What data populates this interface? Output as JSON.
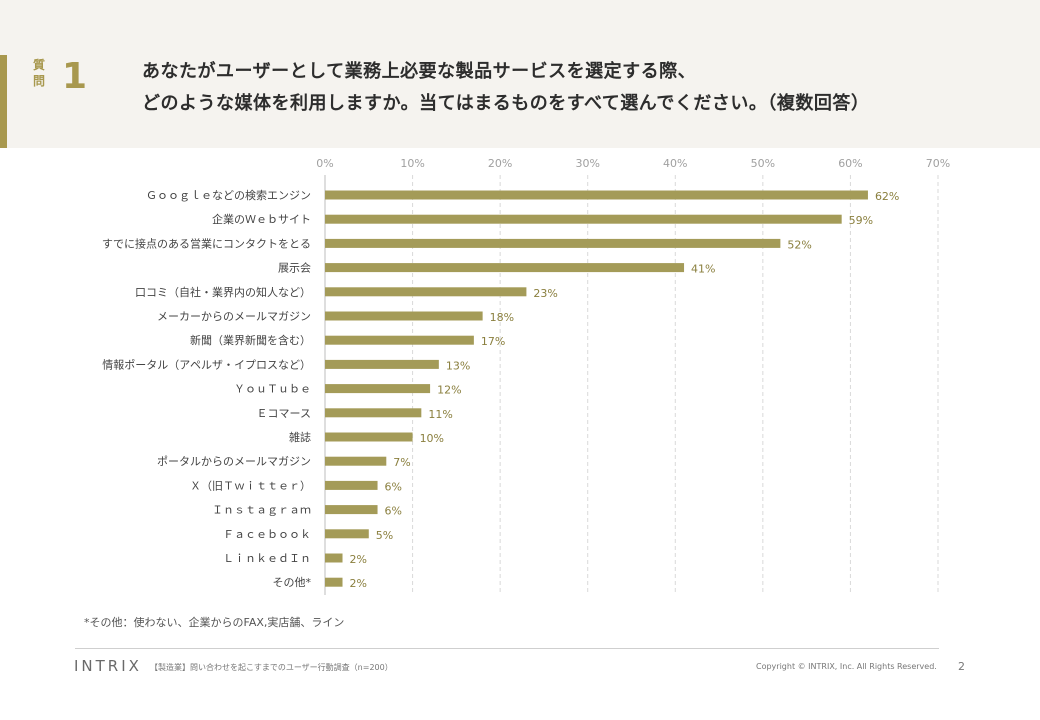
{
  "question": {
    "label": "質問",
    "number": "1",
    "line1": "あなたがユーザーとして業務上必要な製品サービスを選定する際、",
    "line2": "どのような媒体を利用しますか。当てはまるものをすべて選んでください。（複数回答）"
  },
  "colors": {
    "accent": "#a8984e",
    "bar": "#a49b58",
    "label_value": "#8a7f3e"
  },
  "chart_data": {
    "type": "bar",
    "orientation": "horizontal",
    "categories": [
      "Ｇｏｏｇｌｅなどの検索エンジン",
      "企業のＷｅｂサイト",
      "すでに接点のある営業にコンタクトをとる",
      "展示会",
      "口コミ（自社・業界内の知人など）",
      "メーカーからのメールマガジン",
      "新聞（業界新聞を含む）",
      "情報ポータル（アペルザ・イプロスなど）",
      "ＹｏｕＴｕｂｅ",
      "Ｅコマース",
      "雑誌",
      "ポータルからのメールマガジン",
      "Ｘ（旧Ｔｗｉｔｔｅｒ）",
      "Ｉｎｓｔａｇｒａｍ",
      "Ｆａｃｅｂｏｏｋ",
      "ＬｉｎｋｅｄＩｎ",
      "その他*"
    ],
    "values": [
      62,
      59,
      52,
      41,
      23,
      18,
      17,
      13,
      12,
      11,
      10,
      7,
      6,
      6,
      5,
      2,
      2
    ],
    "value_labels": [
      "62%",
      "59%",
      "52%",
      "41%",
      "23%",
      "18%",
      "17%",
      "13%",
      "12%",
      "11%",
      "10%",
      "7%",
      "6%",
      "6%",
      "5%",
      "2%",
      "2%"
    ],
    "xlim": [
      0,
      70
    ],
    "ticks": [
      0,
      10,
      20,
      30,
      40,
      50,
      60,
      70
    ],
    "tick_labels": [
      "0%",
      "10%",
      "20%",
      "30%",
      "40%",
      "50%",
      "60%",
      "70%"
    ],
    "grid": true
  },
  "footnote": "*その他：使わない、企業からのFAX,実店舗、ライン",
  "footer": {
    "logo": "INTRIX",
    "survey": "【製造業】問い合わせを起こすまでのユーザー行動調査（n=200）",
    "copyright": "Copyright © INTRIX, Inc. All Rights Reserved.",
    "page": "2"
  }
}
